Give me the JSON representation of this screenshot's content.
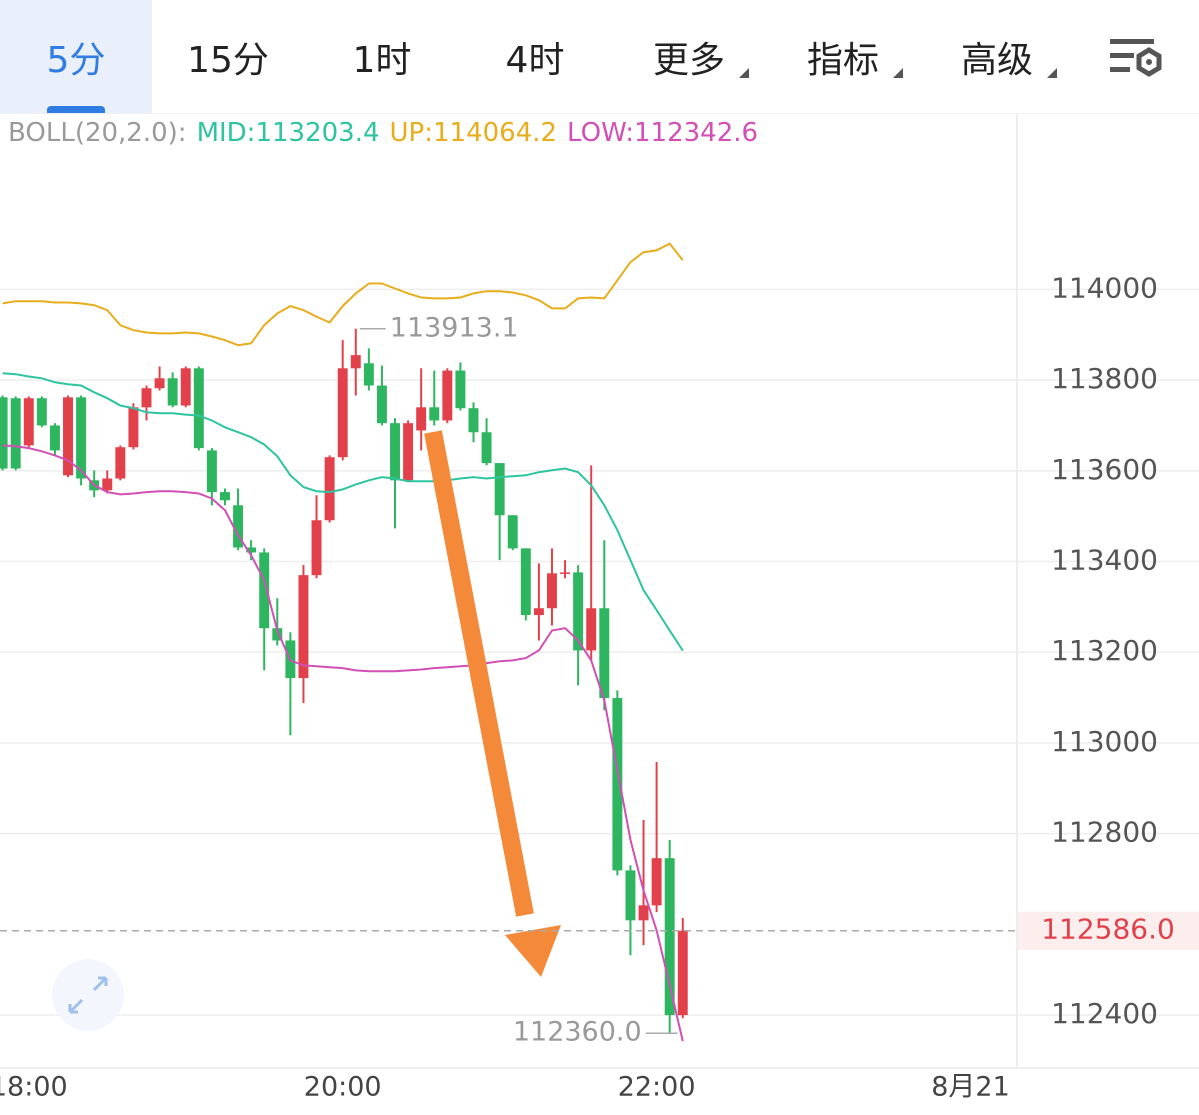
{
  "tabs": [
    "5分",
    "15分",
    "1时",
    "4时",
    "更多",
    "指标",
    "高级"
  ],
  "active_tab": 0,
  "chart_data": {
    "type": "candlestick",
    "indicator": "BOLL(20,2.0):",
    "x": [
      "17:50",
      "17:55",
      "18:00",
      "18:05",
      "18:10",
      "18:15",
      "18:20",
      "18:25",
      "18:30",
      "18:35",
      "18:40",
      "18:45",
      "18:50",
      "18:55",
      "19:00",
      "19:05",
      "19:10",
      "19:15",
      "19:20",
      "19:25",
      "19:30",
      "19:35",
      "19:40",
      "19:45",
      "19:50",
      "19:55",
      "20:00",
      "20:05",
      "20:10",
      "20:15",
      "20:20",
      "20:25",
      "20:30",
      "20:35",
      "20:40",
      "20:45",
      "20:50",
      "20:55",
      "21:00",
      "21:05",
      "21:10",
      "21:15",
      "21:20",
      "21:25",
      "21:30",
      "21:35",
      "21:40",
      "21:45",
      "21:50",
      "21:55",
      "22:00",
      "22:05",
      "22:10"
    ],
    "open": [
      113762,
      113760,
      113656,
      113760,
      113700,
      113590,
      113762,
      113579,
      113557,
      113583,
      113652,
      113740,
      113782,
      113804,
      113744,
      113826,
      113645,
      113553,
      113524,
      113431,
      113420,
      113253,
      113226,
      113143,
      113370,
      113491,
      113630,
      113826,
      113837,
      113788,
      113705,
      113579,
      113689,
      113740,
      113711,
      113821,
      113738,
      113685,
      113617,
      113502,
      113429,
      113282,
      113297,
      113374,
      113376,
      113204,
      113297,
      113099,
      112719,
      112609,
      112642,
      112746,
      112400
    ],
    "high": [
      113766,
      113764,
      113764,
      113764,
      113705,
      113766,
      113766,
      113601,
      113601,
      113656,
      113749,
      113788,
      113830,
      113817,
      113830,
      113830,
      113650,
      113561,
      113561,
      113447,
      113429,
      113319,
      113244,
      113392,
      113546,
      113634,
      113888,
      113913.1,
      113870,
      113832,
      113716,
      113711,
      113826,
      113821,
      113826,
      113839,
      113751,
      113716,
      113617,
      113502,
      113429,
      113396,
      113429,
      113403,
      113392,
      113612,
      113447,
      113116,
      112730,
      112830,
      112958,
      112786,
      112614
    ],
    "low": [
      113601,
      113601,
      113652,
      113696,
      113634,
      113586,
      113568,
      113542,
      113550,
      113579,
      113647,
      113711,
      113777,
      113740,
      113740,
      113645,
      113524,
      113524,
      113425,
      113403,
      113160,
      113215,
      113017,
      113088,
      113363,
      113486,
      113623,
      113766,
      113777,
      113700,
      113473,
      113575,
      113645,
      113700,
      113705,
      113733,
      113663,
      113612,
      113403,
      113425,
      113270,
      113226,
      113259,
      113363,
      113127,
      113182,
      113072,
      112708,
      112532,
      112554,
      112627,
      112360.0,
      112393
    ],
    "close": [
      113605,
      113605,
      113760,
      113700,
      113645,
      113762,
      113583,
      113557,
      113583,
      113652,
      113740,
      113782,
      113804,
      113744,
      113826,
      113650,
      113553,
      113535,
      113431,
      113420,
      113253,
      113226,
      113143,
      113370,
      113491,
      113630,
      113826,
      113855,
      113788,
      113705,
      113579,
      113705,
      113740,
      113711,
      113821,
      113738,
      113685,
      113617,
      113502,
      113429,
      113282,
      113297,
      113374,
      113376,
      113204,
      113297,
      113099,
      112719,
      112609,
      112642,
      112746,
      112400,
      112586.0
    ],
    "up_color": "#e2414b",
    "down_color": "#2eb55f",
    "series": [
      {
        "label": "MID:113203.4",
        "color": "#2ec4a0",
        "values": [
          113815,
          113813,
          113808,
          113804,
          113795,
          113791,
          113788,
          113773,
          113760,
          113744,
          113738,
          113729,
          113727,
          113727,
          113724,
          113722,
          113711,
          113696,
          113685,
          113674,
          113658,
          113632,
          113590,
          113564,
          113555,
          113553,
          113559,
          113570,
          113579,
          113586,
          113583,
          113577,
          113577,
          113577,
          113579,
          113583,
          113586,
          113583,
          113586,
          113588,
          113590,
          113597,
          113601,
          113605,
          113597,
          113568,
          113524,
          113469,
          113403,
          113337,
          113293,
          113248,
          113203.4
        ]
      },
      {
        "label": "UP:114064.2",
        "color": "#e8ac1c",
        "values": [
          113969,
          113974,
          113974,
          113974,
          113971,
          113971,
          113969,
          113965,
          113954,
          113921,
          113910,
          113905,
          113903,
          113903,
          113905,
          113903,
          113896,
          113888,
          113877,
          113881,
          113921,
          113947,
          113963,
          113954,
          113940,
          113927,
          113963,
          113991,
          114013,
          114013,
          114002,
          113991,
          113982,
          113980,
          113980,
          113982,
          113991,
          113996,
          113996,
          113993,
          113987,
          113976,
          113958,
          113958,
          113980,
          113982,
          113980,
          114020,
          114060,
          114082,
          114086,
          114101,
          114064.2
        ]
      },
      {
        "label": "LOW:112342.6",
        "color": "#d24fb5",
        "values": [
          113656,
          113654,
          113650,
          113643,
          113634,
          113623,
          113601,
          113568,
          113553,
          113548,
          113550,
          113553,
          113555,
          113555,
          113553,
          113550,
          113539,
          113513,
          113458,
          113414,
          113359,
          113248,
          113182,
          113171,
          113169,
          113167,
          113165,
          113160,
          113158,
          113158,
          113158,
          113160,
          113162,
          113165,
          113167,
          113169,
          113171,
          113176,
          113180,
          113182,
          113187,
          113204,
          113248,
          113253,
          113226,
          113182,
          113094,
          112940,
          112786,
          112675,
          112587,
          112466,
          112342.6
        ]
      }
    ],
    "annotations": [
      {
        "x": "20:05",
        "value": 113913.1,
        "label": "113913.1",
        "side": "right"
      },
      {
        "x": "22:05",
        "value": 112360.0,
        "label": "112360.0",
        "side": "left"
      }
    ],
    "last_price": {
      "value": 112586.0,
      "label": "112586.0"
    },
    "xlim": [
      "17:49",
      "24:17"
    ],
    "xticks": [
      "18:00",
      "20:00",
      "22:00",
      {
        "value": "24:00",
        "label": "8月21"
      }
    ],
    "ylim": [
      112290,
      114380
    ],
    "yticks": [
      112400,
      112800,
      113000,
      113200,
      113400,
      113600,
      113800,
      114000
    ],
    "grid": true
  }
}
